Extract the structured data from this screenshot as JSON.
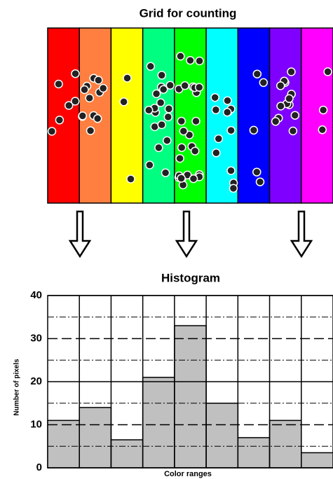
{
  "counting_grid": {
    "title": "Grid for counting"
  },
  "chart_data": {
    "type": "bar",
    "title": "Histogram",
    "xlabel": "Color ranges",
    "ylabel": "Number of pixels",
    "categories": [
      null,
      null,
      null,
      null,
      null,
      null,
      null,
      null,
      null
    ],
    "values": [
      11,
      14,
      6.5,
      21,
      33,
      15,
      7,
      11,
      3.5
    ],
    "color": "#c0c0c0",
    "ylim": [
      0,
      40
    ],
    "yticks": [
      0,
      10,
      20,
      30,
      40
    ],
    "minor_gridlines": [
      5,
      15,
      25,
      35
    ],
    "grid": true
  }
}
